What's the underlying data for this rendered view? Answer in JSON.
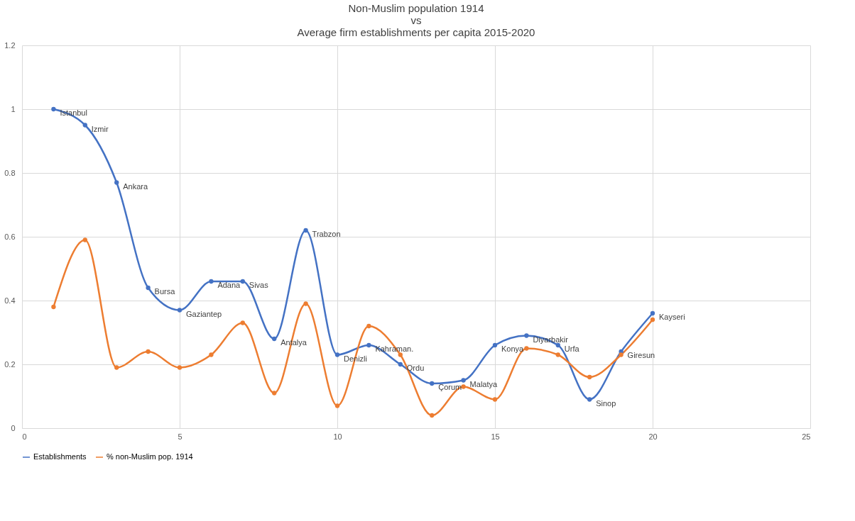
{
  "chart_data": {
    "type": "line",
    "title": "Non-Muslim  population 1914\nvs\nAverage firm establishments per capita 2015-2020",
    "x": [
      1,
      2,
      3,
      4,
      5,
      6,
      7,
      8,
      9,
      10,
      11,
      12,
      13,
      14,
      15,
      16,
      17,
      18,
      19,
      20
    ],
    "series": [
      {
        "name": "Establishments",
        "color": "#4472c4",
        "values": [
          1.0,
          0.95,
          0.77,
          0.44,
          0.37,
          0.46,
          0.46,
          0.28,
          0.62,
          0.23,
          0.26,
          0.2,
          0.14,
          0.15,
          0.26,
          0.29,
          0.26,
          0.09,
          0.24,
          0.36
        ]
      },
      {
        "name": "% non-Muslim pop. 1914",
        "color": "#ed7d31",
        "values": [
          0.38,
          0.59,
          0.19,
          0.24,
          0.19,
          0.23,
          0.33,
          0.11,
          0.39,
          0.07,
          0.32,
          0.23,
          0.04,
          0.13,
          0.09,
          0.25,
          0.23,
          0.16,
          0.23,
          0.34
        ]
      }
    ],
    "annotations": [
      {
        "text": "Istanbul",
        "x": 1,
        "y": 1.0
      },
      {
        "text": "Izmir",
        "x": 2,
        "y": 0.95
      },
      {
        "text": "Ankara",
        "x": 3,
        "y": 0.77
      },
      {
        "text": "Bursa",
        "x": 4,
        "y": 0.44
      },
      {
        "text": "Gaziantep",
        "x": 5,
        "y": 0.37
      },
      {
        "text": "Adana",
        "x": 6,
        "y": 0.46
      },
      {
        "text": "Sivas",
        "x": 7,
        "y": 0.46
      },
      {
        "text": "Antalya",
        "x": 8,
        "y": 0.28
      },
      {
        "text": "Trabzon",
        "x": 9,
        "y": 0.62
      },
      {
        "text": "Denizli",
        "x": 10,
        "y": 0.23
      },
      {
        "text": "Kahraman.",
        "x": 11,
        "y": 0.26
      },
      {
        "text": "Ordu",
        "x": 12,
        "y": 0.2
      },
      {
        "text": "Çorum",
        "x": 13,
        "y": 0.14
      },
      {
        "text": "Malatya",
        "x": 14,
        "y": 0.15
      },
      {
        "text": "Konya",
        "x": 15,
        "y": 0.26
      },
      {
        "text": "Diyarbakir",
        "x": 16,
        "y": 0.29
      },
      {
        "text": "Urfa",
        "x": 17,
        "y": 0.26
      },
      {
        "text": "Sinop",
        "x": 18,
        "y": 0.09
      },
      {
        "text": "Giresun",
        "x": 19,
        "y": 0.24
      },
      {
        "text": "Kayseri",
        "x": 20,
        "y": 0.36
      }
    ],
    "xlim": [
      0,
      25
    ],
    "xticks": [
      0,
      5,
      10,
      15,
      20,
      25
    ],
    "ylim": [
      0,
      1.2
    ],
    "yticks": [
      0,
      0.2,
      0.4,
      0.6,
      0.8,
      1,
      1.2
    ],
    "grid": true,
    "legend": "bottom",
    "marker": "circle",
    "line_style": "solid"
  }
}
